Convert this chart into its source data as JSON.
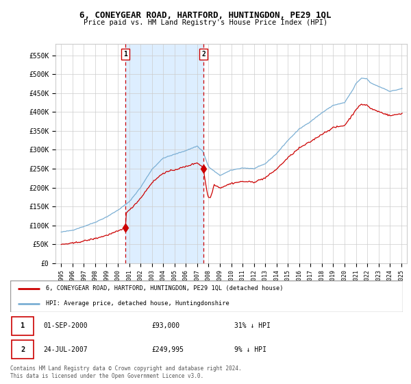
{
  "title": "6, CONEYGEAR ROAD, HARTFORD, HUNTINGDON, PE29 1QL",
  "subtitle": "Price paid vs. HM Land Registry's House Price Index (HPI)",
  "ylim": [
    0,
    580000
  ],
  "yticks": [
    0,
    50000,
    100000,
    150000,
    200000,
    250000,
    300000,
    350000,
    400000,
    450000,
    500000,
    550000
  ],
  "ytick_labels": [
    "£0",
    "£50K",
    "£100K",
    "£150K",
    "£200K",
    "£250K",
    "£300K",
    "£350K",
    "£400K",
    "£450K",
    "£500K",
    "£550K"
  ],
  "sale_dates_num": [
    2000.667,
    2007.556
  ],
  "sale_prices": [
    93000,
    249995
  ],
  "sale_labels": [
    "1",
    "2"
  ],
  "legend_line1": "6, CONEYGEAR ROAD, HARTFORD, HUNTINGDON, PE29 1QL (detached house)",
  "legend_line2": "HPI: Average price, detached house, Huntingdonshire",
  "table_rows": [
    [
      "1",
      "01-SEP-2000",
      "£93,000",
      "31% ↓ HPI"
    ],
    [
      "2",
      "24-JUL-2007",
      "£249,995",
      "9% ↓ HPI"
    ]
  ],
  "footer": "Contains HM Land Registry data © Crown copyright and database right 2024.\nThis data is licensed under the Open Government Licence v3.0.",
  "red_color": "#cc0000",
  "blue_color": "#7bafd4",
  "shade_color": "#ddeeff",
  "background_color": "#ffffff",
  "grid_color": "#cccccc"
}
